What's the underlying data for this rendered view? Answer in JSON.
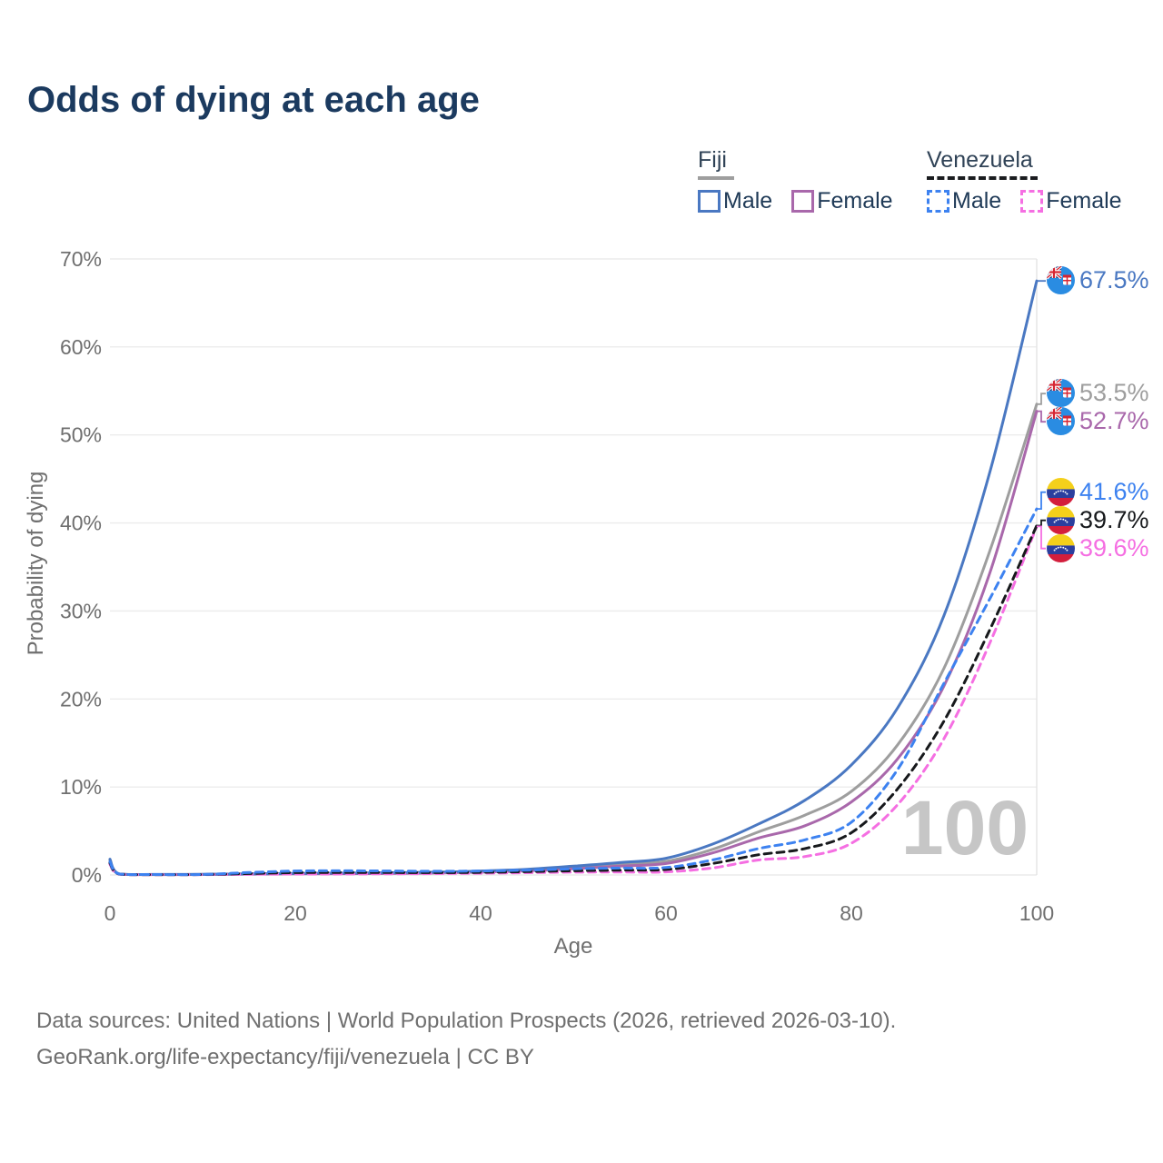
{
  "page": {
    "title": "Odds of dying at each age",
    "hover_age": "100"
  },
  "legend": {
    "groups": [
      {
        "label": "Fiji",
        "style": "solid",
        "items": [
          {
            "label": "Male",
            "color": "#4a78c2"
          },
          {
            "label": "Female",
            "color": "#a968ab"
          }
        ]
      },
      {
        "label": "Venezuela",
        "style": "dashed",
        "items": [
          {
            "label": "Male",
            "color": "#3d82f0"
          },
          {
            "label": "Female",
            "color": "#f56fe2"
          }
        ]
      }
    ]
  },
  "footer": {
    "line1": "Data sources: United Nations | World Population Prospects (2026, retrieved 2026-03-10).",
    "line2": "GeoRank.org/life-expectancy/fiji/venezuela | CC BY"
  },
  "chart_data": {
    "type": "line",
    "title": "Odds of dying at each age",
    "xlabel": "Age",
    "ylabel": "Probability of dying",
    "xlim": [
      0,
      100
    ],
    "ylim": [
      0,
      70
    ],
    "x_ticks": [
      0,
      20,
      40,
      60,
      80,
      100
    ],
    "y_ticks": [
      {
        "value": 0,
        "label": "0%"
      },
      {
        "value": 10,
        "label": "10%"
      },
      {
        "value": 20,
        "label": "20%"
      },
      {
        "value": 30,
        "label": "30%"
      },
      {
        "value": 40,
        "label": "40%"
      },
      {
        "value": 50,
        "label": "50%"
      },
      {
        "value": 60,
        "label": "60%"
      },
      {
        "value": 70,
        "label": "70%"
      }
    ],
    "grid": "horizontal",
    "legend_position": "top-right",
    "hover_age": 100,
    "ages": [
      0,
      1,
      5,
      10,
      15,
      20,
      25,
      30,
      35,
      40,
      45,
      50,
      55,
      60,
      65,
      70,
      75,
      80,
      85,
      90,
      95,
      100
    ],
    "series": [
      {
        "id": "fiji-male",
        "name": "Fiji Male",
        "country": "Fiji",
        "sex": "Male",
        "line": "solid",
        "color": "#4a78c2",
        "flag": "fiji",
        "end_label": "67.5%",
        "values": [
          1.8,
          0.12,
          0.06,
          0.07,
          0.13,
          0.19,
          0.22,
          0.26,
          0.32,
          0.45,
          0.65,
          1.0,
          1.4,
          1.9,
          3.5,
          5.8,
          8.5,
          12.5,
          19,
          29.5,
          46,
          67.5
        ]
      },
      {
        "id": "fiji-both",
        "name": "Fiji (both sexes)",
        "country": "Fiji",
        "sex": "Both",
        "line": "solid",
        "color": "#9e9e9e",
        "flag": "fiji",
        "end_label": "53.5%",
        "values": [
          1.65,
          0.11,
          0.05,
          0.06,
          0.11,
          0.15,
          0.18,
          0.21,
          0.27,
          0.38,
          0.55,
          0.85,
          1.2,
          1.55,
          2.9,
          4.9,
          6.8,
          9.5,
          14.8,
          23.5,
          37,
          53.5
        ]
      },
      {
        "id": "fiji-female",
        "name": "Fiji Female",
        "country": "Fiji",
        "sex": "Female",
        "line": "solid",
        "color": "#a968ab",
        "flag": "fiji",
        "end_label": "52.7%",
        "values": [
          1.5,
          0.1,
          0.04,
          0.05,
          0.09,
          0.12,
          0.14,
          0.17,
          0.22,
          0.32,
          0.46,
          0.7,
          1.0,
          1.3,
          2.5,
          4.2,
          5.6,
          8.3,
          13.2,
          21.5,
          34.5,
          52.7
        ]
      },
      {
        "id": "venezuela-male",
        "name": "Venezuela Male",
        "country": "Venezuela",
        "sex": "Male",
        "line": "dashed",
        "color": "#3d82f0",
        "flag": "venezuela",
        "end_label": "41.6%",
        "values": [
          1.5,
          0.11,
          0.05,
          0.06,
          0.28,
          0.45,
          0.48,
          0.45,
          0.42,
          0.45,
          0.55,
          0.7,
          0.78,
          0.85,
          1.7,
          3.0,
          4.0,
          6.0,
          12.0,
          21.8,
          31.5,
          41.6
        ]
      },
      {
        "id": "venezuela-both",
        "name": "Venezuela (both sexes)",
        "country": "Venezuela",
        "sex": "Both",
        "line": "dashed",
        "color": "#17191c",
        "flag": "venezuela",
        "end_label": "39.7%",
        "values": [
          1.35,
          0.1,
          0.04,
          0.05,
          0.17,
          0.27,
          0.29,
          0.28,
          0.27,
          0.3,
          0.38,
          0.48,
          0.55,
          0.62,
          1.3,
          2.3,
          3.0,
          4.8,
          9.8,
          17.5,
          28,
          39.7
        ]
      },
      {
        "id": "venezuela-female",
        "name": "Venezuela Female",
        "country": "Venezuela",
        "sex": "Female",
        "line": "dashed",
        "color": "#f56fe2",
        "flag": "venezuela",
        "end_label": "39.6%",
        "values": [
          1.2,
          0.09,
          0.04,
          0.04,
          0.08,
          0.1,
          0.11,
          0.13,
          0.16,
          0.2,
          0.26,
          0.32,
          0.34,
          0.35,
          0.8,
          1.7,
          2.1,
          3.6,
          8.0,
          15.5,
          26.5,
          39.6
        ]
      }
    ]
  }
}
